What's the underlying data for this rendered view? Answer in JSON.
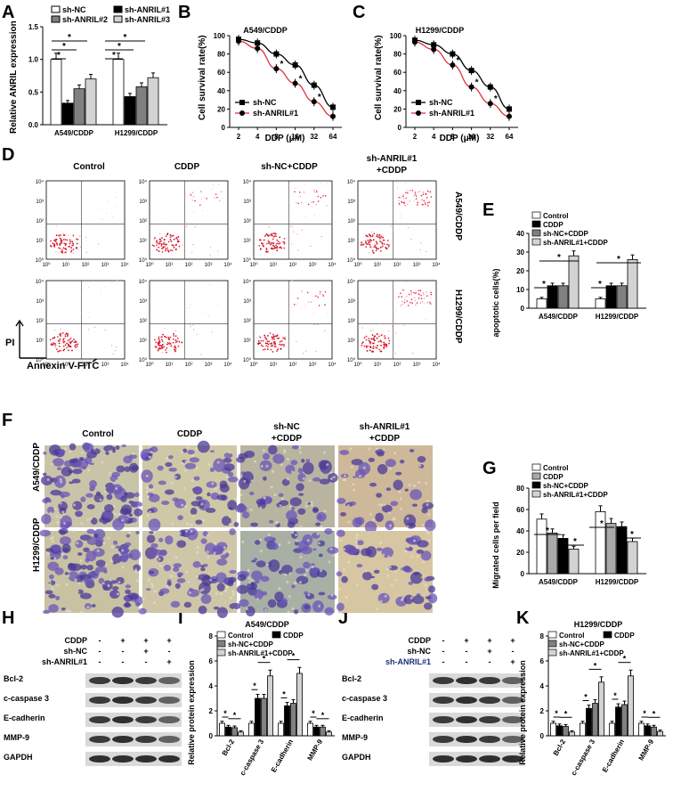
{
  "figure": {
    "panel_letters": [
      "A",
      "B",
      "C",
      "D",
      "E",
      "F",
      "G",
      "H",
      "I",
      "J",
      "K"
    ]
  },
  "panelA": {
    "ylabel": "Relative ANRIL expression",
    "legend": [
      "sh-NC",
      "sh-ANRIL#2",
      "sh-ANRIL#1",
      "sh-ANRIL#3"
    ],
    "colors": [
      "#ffffff",
      "#808080",
      "#000000",
      "#d3d3d3"
    ],
    "yticks": [
      "0.0",
      "0.5",
      "1.0",
      "1.5"
    ],
    "groups": [
      "A549/CDDP",
      "H1299/CDDP"
    ],
    "star": "*"
  },
  "panelB": {
    "title": "A549/CDDP",
    "ylabel": "Cell survival rate(%)",
    "xlabel": "DDP (μM)",
    "yticks": [
      "0",
      "20",
      "40",
      "60",
      "80",
      "100"
    ],
    "xticks": [
      "2",
      "4",
      "8",
      "16",
      "32",
      "64"
    ],
    "legend": [
      "sh-NC",
      "sh-ANRIL#1"
    ]
  },
  "panelC": {
    "title": "H1299/CDDP",
    "ylabel": "Cell survival rate(%)",
    "xlabel": "DDP (μM)",
    "yticks": [
      "0",
      "20",
      "40",
      "60",
      "80",
      "100"
    ],
    "xticks": [
      "2",
      "4",
      "8",
      "16",
      "32",
      "64"
    ],
    "legend": [
      "sh-NC",
      "sh-ANRIL#1"
    ]
  },
  "panelD": {
    "col_titles": [
      "Control",
      "CDDP",
      "sh-NC+CDDP",
      "sh-ANRIL#1",
      "+CDDP"
    ],
    "row_labels": [
      "A549/CDDP",
      "H1299/CDDP"
    ],
    "yticks": [
      "10⁰",
      "10¹",
      "10²",
      "10³",
      "10⁴"
    ],
    "xticks": [
      "10⁰",
      "10¹",
      "10²",
      "10³",
      "10⁴"
    ],
    "ylabel": "PI",
    "xlabel": "Annexin V-FITC"
  },
  "panelE": {
    "ylabel": "apoptotic cells(%)",
    "legend": [
      "Control",
      "CDDP",
      "sh-NC+CDDP",
      "sh-ANRIL#1+CDDP"
    ],
    "yticks": [
      "0",
      "10",
      "20",
      "30",
      "40"
    ],
    "groups": [
      "A549/CDDP",
      "H1299/CDDP"
    ]
  },
  "panelF": {
    "col_titles": [
      "Control",
      "CDDP",
      "sh-NC",
      "+CDDP",
      "sh-ANRIL#1",
      "+CDDP"
    ],
    "row_labels": [
      "A549/CDDP",
      "H1299/CDDP"
    ]
  },
  "panelG": {
    "ylabel": "Migrated cells per field",
    "legend": [
      "Control",
      "CDDP",
      "sh-NC+CDDP",
      "sh-ANRIL#1+CDDP"
    ],
    "yticks": [
      "0",
      "20",
      "40",
      "60",
      "80"
    ],
    "groups": [
      "A549/CDDP",
      "H1299/CDDP"
    ]
  },
  "panelH": {
    "conds": [
      "CDDP",
      "sh-NC",
      "sh-ANRIL#1"
    ],
    "signs": [
      [
        "-",
        "+",
        "+",
        "+"
      ],
      [
        "-",
        "-",
        "+",
        "-"
      ],
      [
        "-",
        "-",
        "-",
        "+"
      ]
    ],
    "bands": [
      "Bcl-2",
      "c-caspase 3",
      "E-cadherin",
      "MMP-9",
      "GAPDH"
    ]
  },
  "panelI": {
    "title": "A549/CDDP",
    "ylabel": "Relative protein expression",
    "legend": [
      "Control",
      "CDDP",
      "sh-NC+CDDP",
      "sh-ANRIL#1+CDDP"
    ],
    "yticks": [
      "0",
      "2",
      "4",
      "6",
      "8"
    ],
    "groups": [
      "Bcl-2",
      "c-caspase 3",
      "E-cadherin",
      "MMP-9"
    ]
  },
  "panelJ": {
    "conds": [
      "CDDP",
      "sh-NC",
      "sh-ANRIL#1"
    ],
    "signs": [
      [
        "-",
        "+",
        "+",
        "+"
      ],
      [
        "-",
        "-",
        "+",
        "-"
      ],
      [
        "-",
        "-",
        "-",
        "+"
      ]
    ],
    "bands": [
      "Bcl-2",
      "c-caspase 3",
      "E-cadherin",
      "MMP-9",
      "GAPDH"
    ]
  },
  "panelK": {
    "title": "H1299/CDDP",
    "ylabel": "Relative protein expression",
    "legend": [
      "Control",
      "CDDP",
      "sh-NC+CDDP",
      "sh-ANRIL#1+CDDP"
    ],
    "yticks": [
      "0",
      "2",
      "4",
      "6",
      "8"
    ],
    "groups": [
      "Bcl-2",
      "c-caspase 3",
      "E-cadherin",
      "MMP-9"
    ]
  },
  "chart_data": [
    {
      "panel": "A",
      "type": "bar",
      "ylabel": "Relative ANRIL expression",
      "ylim": [
        0,
        1.5
      ],
      "categories": [
        "A549/CDDP",
        "H1299/CDDP"
      ],
      "series": [
        {
          "name": "sh-NC",
          "values": [
            1.0,
            1.0
          ]
        },
        {
          "name": "sh-ANRIL#1",
          "values": [
            0.33,
            0.43
          ]
        },
        {
          "name": "sh-ANRIL#2",
          "values": [
            0.55,
            0.58
          ]
        },
        {
          "name": "sh-ANRIL#3",
          "values": [
            0.7,
            0.72
          ]
        }
      ]
    },
    {
      "panel": "B",
      "type": "line",
      "title": "A549/CDDP",
      "xlabel": "DDP (μM)",
      "ylabel": "Cell survival rate(%)",
      "ylim": [
        0,
        100
      ],
      "x": [
        2,
        4,
        8,
        16,
        32,
        64
      ],
      "series": [
        {
          "name": "sh-NC",
          "values": [
            96,
            92,
            80,
            68,
            46,
            22
          ]
        },
        {
          "name": "sh-ANRIL#1",
          "values": [
            94,
            86,
            64,
            48,
            28,
            12
          ]
        }
      ]
    },
    {
      "panel": "C",
      "type": "line",
      "title": "H1299/CDDP",
      "xlabel": "DDP (μM)",
      "ylabel": "Cell survival rate(%)",
      "ylim": [
        0,
        100
      ],
      "x": [
        2,
        4,
        8,
        16,
        32,
        64
      ],
      "series": [
        {
          "name": "sh-NC",
          "values": [
            95,
            90,
            80,
            62,
            44,
            20
          ]
        },
        {
          "name": "sh-ANRIL#1",
          "values": [
            93,
            85,
            68,
            44,
            26,
            12
          ]
        }
      ]
    },
    {
      "panel": "E",
      "type": "bar",
      "ylabel": "apoptotic cells(%)",
      "ylim": [
        0,
        40
      ],
      "categories": [
        "A549/CDDP",
        "H1299/CDDP"
      ],
      "series": [
        {
          "name": "Control",
          "values": [
            5,
            5
          ]
        },
        {
          "name": "CDDP",
          "values": [
            12,
            12
          ]
        },
        {
          "name": "sh-NC+CDDP",
          "values": [
            12,
            12
          ]
        },
        {
          "name": "sh-ANRIL#1+CDDP",
          "values": [
            28,
            26
          ]
        }
      ]
    },
    {
      "panel": "G",
      "type": "bar",
      "ylabel": "Migrated cells per field",
      "ylim": [
        0,
        80
      ],
      "categories": [
        "A549/CDDP",
        "H1299/CDDP"
      ],
      "series": [
        {
          "name": "Control",
          "values": [
            51,
            58
          ]
        },
        {
          "name": "CDDP",
          "values": [
            38,
            47
          ]
        },
        {
          "name": "sh-NC+CDDP",
          "values": [
            33,
            44
          ]
        },
        {
          "name": "sh-ANRIL#1+CDDP",
          "values": [
            23,
            30
          ]
        }
      ]
    },
    {
      "panel": "I",
      "type": "bar",
      "title": "A549/CDDP",
      "ylabel": "Relative protein expression",
      "ylim": [
        0,
        8
      ],
      "categories": [
        "Bcl-2",
        "c-caspase 3",
        "E-cadherin",
        "MMP-9"
      ],
      "series": [
        {
          "name": "Control",
          "values": [
            1.0,
            1.0,
            1.0,
            1.0
          ]
        },
        {
          "name": "CDDP",
          "values": [
            0.7,
            3.0,
            2.4,
            0.7
          ]
        },
        {
          "name": "sh-NC+CDDP",
          "values": [
            0.65,
            3.0,
            2.6,
            0.7
          ]
        },
        {
          "name": "sh-ANRIL#1+CDDP",
          "values": [
            0.3,
            4.8,
            5.0,
            0.3
          ]
        }
      ]
    },
    {
      "panel": "K",
      "type": "bar",
      "title": "H1299/CDDP",
      "ylabel": "Relative protein expression",
      "ylim": [
        0,
        8
      ],
      "categories": [
        "Bcl-2",
        "c-caspase 3",
        "E-cadherin",
        "MMP-9"
      ],
      "series": [
        {
          "name": "Control",
          "values": [
            1.0,
            1.0,
            1.0,
            1.0
          ]
        },
        {
          "name": "CDDP",
          "values": [
            0.8,
            2.2,
            2.3,
            0.8
          ]
        },
        {
          "name": "sh-NC+CDDP",
          "values": [
            0.75,
            2.6,
            2.5,
            0.7
          ]
        },
        {
          "name": "sh-ANRIL#1+CDDP",
          "values": [
            0.3,
            4.3,
            4.8,
            0.35
          ]
        }
      ]
    }
  ]
}
